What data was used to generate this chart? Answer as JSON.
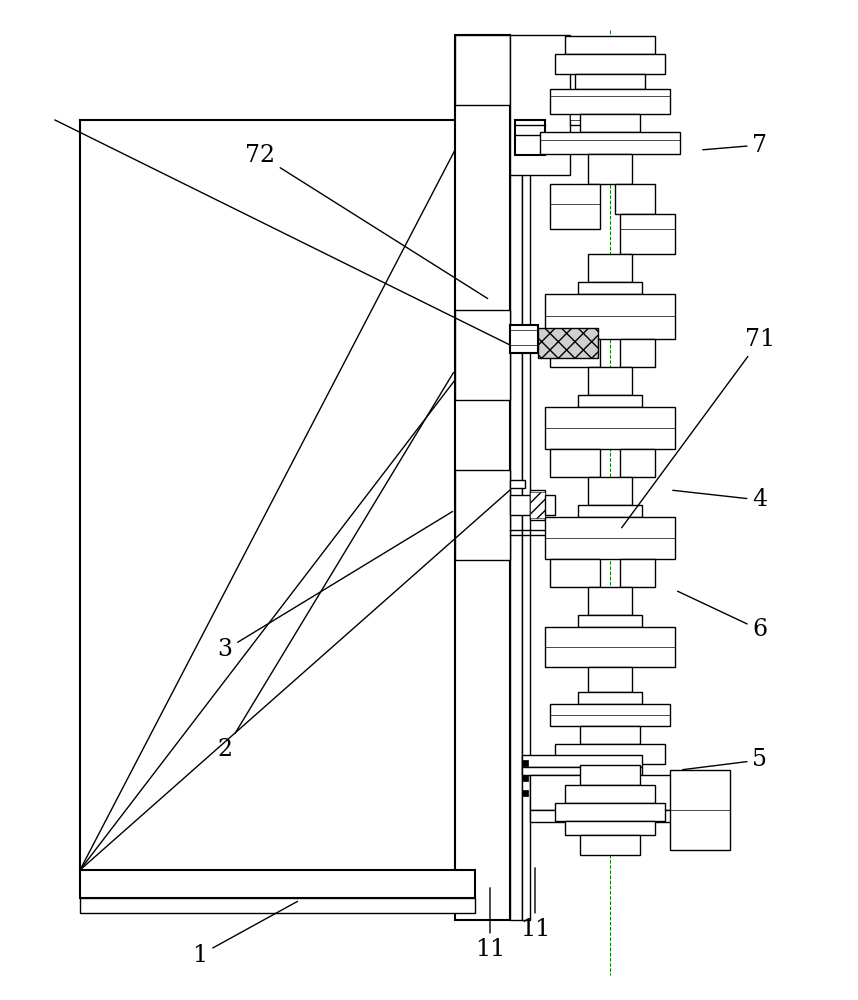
{
  "bg_color": "#ffffff",
  "line_color": "#000000",
  "figsize": [
    8.58,
    10.0
  ],
  "dpi": 100,
  "labels_info": [
    [
      "1",
      [
        1.8,
        9.55
      ],
      [
        3.5,
        9.2
      ]
    ],
    [
      "2",
      [
        2.2,
        7.6
      ],
      [
        4.55,
        6.55
      ]
    ],
    [
      "3",
      [
        2.2,
        6.55
      ],
      [
        4.4,
        5.35
      ]
    ],
    [
      "4",
      [
        8.1,
        5.0
      ],
      [
        6.85,
        4.8
      ]
    ],
    [
      "5",
      [
        8.1,
        7.75
      ],
      [
        6.85,
        7.55
      ]
    ],
    [
      "6",
      [
        8.1,
        6.3
      ],
      [
        6.85,
        5.9
      ]
    ],
    [
      "7",
      [
        8.1,
        1.45
      ],
      [
        6.5,
        1.75
      ]
    ],
    [
      "11",
      [
        5.35,
        9.25
      ],
      [
        5.05,
        8.7
      ]
    ],
    [
      "71",
      [
        8.1,
        3.5
      ],
      [
        6.0,
        5.35
      ]
    ],
    [
      "72",
      [
        2.5,
        1.7
      ],
      [
        4.85,
        2.95
      ]
    ]
  ]
}
